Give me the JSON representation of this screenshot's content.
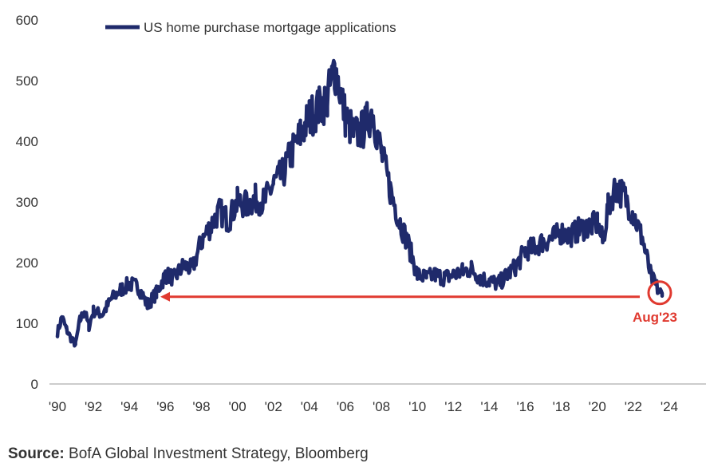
{
  "chart_data": {
    "type": "line",
    "title": "",
    "xlabel": "",
    "ylabel": "",
    "ylim": [
      0,
      600
    ],
    "xlim": [
      1990,
      2025
    ],
    "y_ticks": [
      "0",
      "100",
      "200",
      "300",
      "400",
      "500",
      "600"
    ],
    "x_ticks": [
      "'90",
      "'92",
      "'94",
      "'96",
      "'98",
      "'00",
      "'02",
      "'04",
      "'06",
      "'08",
      "'10",
      "'12",
      "'14",
      "'16",
      "'18",
      "'20",
      "'22",
      "'24"
    ],
    "grid": false,
    "legend_position": "top-left",
    "series": [
      {
        "name": "US home purchase mortgage applications",
        "color": "#1f2a6b",
        "x": [
          1990.0,
          1990.25,
          1990.5,
          1990.75,
          1991.0,
          1991.25,
          1991.5,
          1991.75,
          1992.0,
          1992.5,
          1993.0,
          1993.5,
          1994.0,
          1994.5,
          1995.0,
          1995.5,
          1996.0,
          1996.5,
          1997.0,
          1997.5,
          1998.0,
          1998.5,
          1999.0,
          1999.5,
          2000.0,
          2000.5,
          2001.0,
          2001.5,
          2002.0,
          2002.5,
          2003.0,
          2003.5,
          2004.0,
          2004.5,
          2005.0,
          2005.4,
          2005.6,
          2006.0,
          2006.5,
          2007.0,
          2007.5,
          2008.0,
          2008.5,
          2009.0,
          2009.5,
          2010.0,
          2010.5,
          2011.0,
          2011.5,
          2012.0,
          2012.5,
          2013.0,
          2013.5,
          2014.0,
          2014.5,
          2015.0,
          2015.5,
          2016.0,
          2016.5,
          2017.0,
          2017.5,
          2018.0,
          2018.5,
          2019.0,
          2019.5,
          2020.0,
          2020.3,
          2020.6,
          2021.0,
          2021.5,
          2022.0,
          2022.5,
          2023.0,
          2023.3,
          2023.6
        ],
        "values": [
          85,
          110,
          90,
          75,
          65,
          105,
          120,
          95,
          120,
          115,
          140,
          155,
          165,
          160,
          130,
          150,
          180,
          175,
          195,
          190,
          235,
          260,
          285,
          270,
          300,
          295,
          305,
          300,
          330,
          345,
          380,
          410,
          440,
          455,
          470,
          520,
          500,
          440,
          410,
          420,
          450,
          380,
          320,
          270,
          230,
          180,
          175,
          180,
          175,
          180,
          185,
          190,
          175,
          170,
          165,
          180,
          195,
          220,
          225,
          235,
          240,
          250,
          245,
          255,
          260,
          265,
          235,
          290,
          325,
          310,
          280,
          240,
          175,
          160,
          145
        ]
      }
    ],
    "annotation": {
      "label": "Aug'23",
      "x": 2023.6,
      "y": 145,
      "color": "#e03a30"
    },
    "source": {
      "prefix": "Source:",
      "text": " BofA Global Investment Strategy, Bloomberg"
    }
  }
}
